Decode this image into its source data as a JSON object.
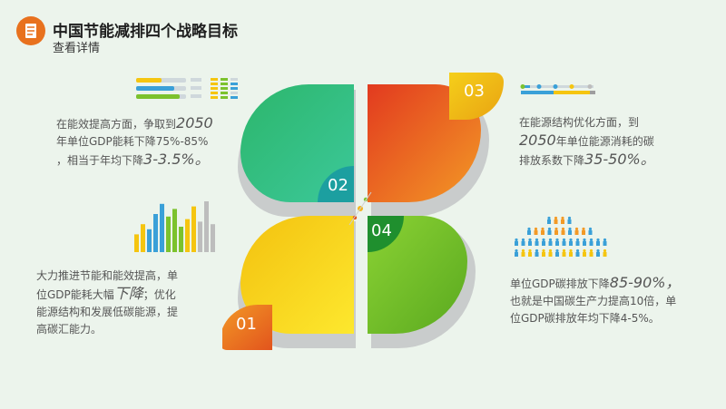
{
  "header": {
    "title": "中国节能减排四个战略目标",
    "subtitle": "查看详情",
    "icon": "document-icon"
  },
  "colors": {
    "orange": "#e8711e",
    "green": "#2db66e",
    "red_orange": "#e9531f",
    "yellow": "#f5c510",
    "lime": "#7cc22d"
  },
  "petals": {
    "p01": "01",
    "p02": "02",
    "p03": "03",
    "p04": "04"
  },
  "texts": {
    "top_left": {
      "l1": "在能效提高方面，争取到",
      "l1_big": "2050",
      "l2": "年单位GDP能耗下降75%-85%",
      "l3": "，相当于年均下降",
      "l3_big": "3-3.5%。"
    },
    "top_right": {
      "l1": "在能源结构优化方面，到",
      "l2_big": "2050",
      "l2": "年单位能源消耗的碳",
      "l3": "排放系数下降",
      "l3_big": "35-50%。"
    },
    "bottom_left": {
      "l1": "大力推进节能和能效提高，单",
      "l2": "位GDP能耗大幅",
      "l2_big": "下降",
      "l2b": "；优化",
      "l3": "能源结构和发展低碳能源，提",
      "l4": "高碳汇能力。"
    },
    "bottom_right": {
      "l1": "单位GDP碳排放下降",
      "l1_big": "85-90%，",
      "l2": "也就是中国碳生产力提高10倍，单",
      "l3": "位GDP碳排放年均下降4-5%。"
    }
  },
  "bars": [
    {
      "h": 0.35,
      "c": "#f5c510"
    },
    {
      "h": 0.55,
      "c": "#f5c510"
    },
    {
      "h": 0.45,
      "c": "#3aa0d8"
    },
    {
      "h": 0.75,
      "c": "#3aa0d8"
    },
    {
      "h": 0.95,
      "c": "#3aa0d8"
    },
    {
      "h": 0.7,
      "c": "#7cc22d"
    },
    {
      "h": 0.85,
      "c": "#7cc22d"
    },
    {
      "h": 0.5,
      "c": "#7cc22d"
    },
    {
      "h": 0.65,
      "c": "#f5c510"
    },
    {
      "h": 0.9,
      "c": "#f5c510"
    },
    {
      "h": 0.6,
      "c": "#bdbdbd"
    },
    {
      "h": 1.0,
      "c": "#bdbdbd"
    },
    {
      "h": 0.55,
      "c": "#bdbdbd"
    }
  ]
}
